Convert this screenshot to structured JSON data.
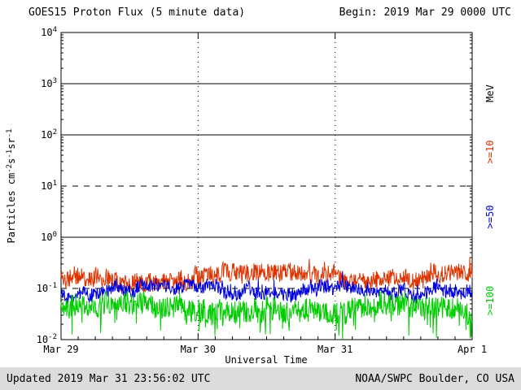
{
  "header": {
    "title": "GOES15 Proton Flux (5 minute data)",
    "begin": "Begin: 2019 Mar 29 0000 UTC"
  },
  "footer": {
    "updated": "Updated 2019 Mar 31 23:56:02 UTC",
    "credit": "NOAA/SWPC Boulder, CO USA"
  },
  "chart_data": {
    "type": "line",
    "title": "GOES15 Proton Flux (5 minute data)",
    "x_axis": {
      "label": "Universal Time",
      "start": "2019 Mar 29 0000 UTC",
      "end": "2019 Apr 1 0000 UTC",
      "days": 3,
      "sample_interval_minutes": 5,
      "points": 864,
      "tick_labels": [
        "Mar 29",
        "Mar 30",
        "Mar 31",
        "Apr 1"
      ],
      "gridline_days": [
        1,
        2
      ]
    },
    "y_axis": {
      "label": "Particles cm-2 s-1 sr-1",
      "label_parts": [
        [
          "Particles cm",
          false
        ],
        [
          "-2",
          true
        ],
        [
          "s",
          false
        ],
        [
          "-1",
          true
        ],
        [
          "sr",
          false
        ],
        [
          "-1",
          true
        ]
      ],
      "scale": "log",
      "min": 0.01,
      "max": 10000,
      "log_min": -2,
      "log_max": 4,
      "tick_exponents": [
        4,
        3,
        2,
        1,
        0,
        -1,
        -2
      ],
      "unit_label": "MeV"
    },
    "reference_lines": [
      {
        "value": 1000,
        "style": "solid"
      },
      {
        "value": 100,
        "style": "solid"
      },
      {
        "value": 10,
        "style": "dashed"
      },
      {
        "value": 1,
        "style": "solid"
      },
      {
        "value": 0.1,
        "style": "dashed"
      }
    ],
    "legend_position": "right",
    "grid": "decade lines horizontal, dotted day boundaries vertical",
    "series": [
      {
        "name": ">=10 MeV",
        "label": ">=10",
        "color": "#dd3300",
        "approx_median": 0.17,
        "approx_min": 0.07,
        "approx_max": 0.45,
        "log10_center": -0.78,
        "log10_jitter": 0.17,
        "spike_prob": 0.04,
        "spike_mag": 0.2,
        "spike_sign": 1,
        "seed": 11
      },
      {
        "name": ">=50 MeV",
        "label": ">=50",
        "color": "#0000dd",
        "approx_median": 0.09,
        "approx_min": 0.04,
        "approx_max": 0.2,
        "log10_center": -1.05,
        "log10_jitter": 0.13,
        "spike_prob": 0.03,
        "spike_mag": 0.18,
        "spike_sign": 1,
        "seed": 22
      },
      {
        "name": ">=100 MeV",
        "label": ">=100",
        "color": "#00cc00",
        "approx_median": 0.04,
        "approx_min": 0.012,
        "approx_max": 0.1,
        "log10_center": -1.38,
        "log10_jitter": 0.22,
        "spike_prob": 0.06,
        "spike_mag": 0.4,
        "spike_sign": -1,
        "seed": 33
      }
    ]
  }
}
